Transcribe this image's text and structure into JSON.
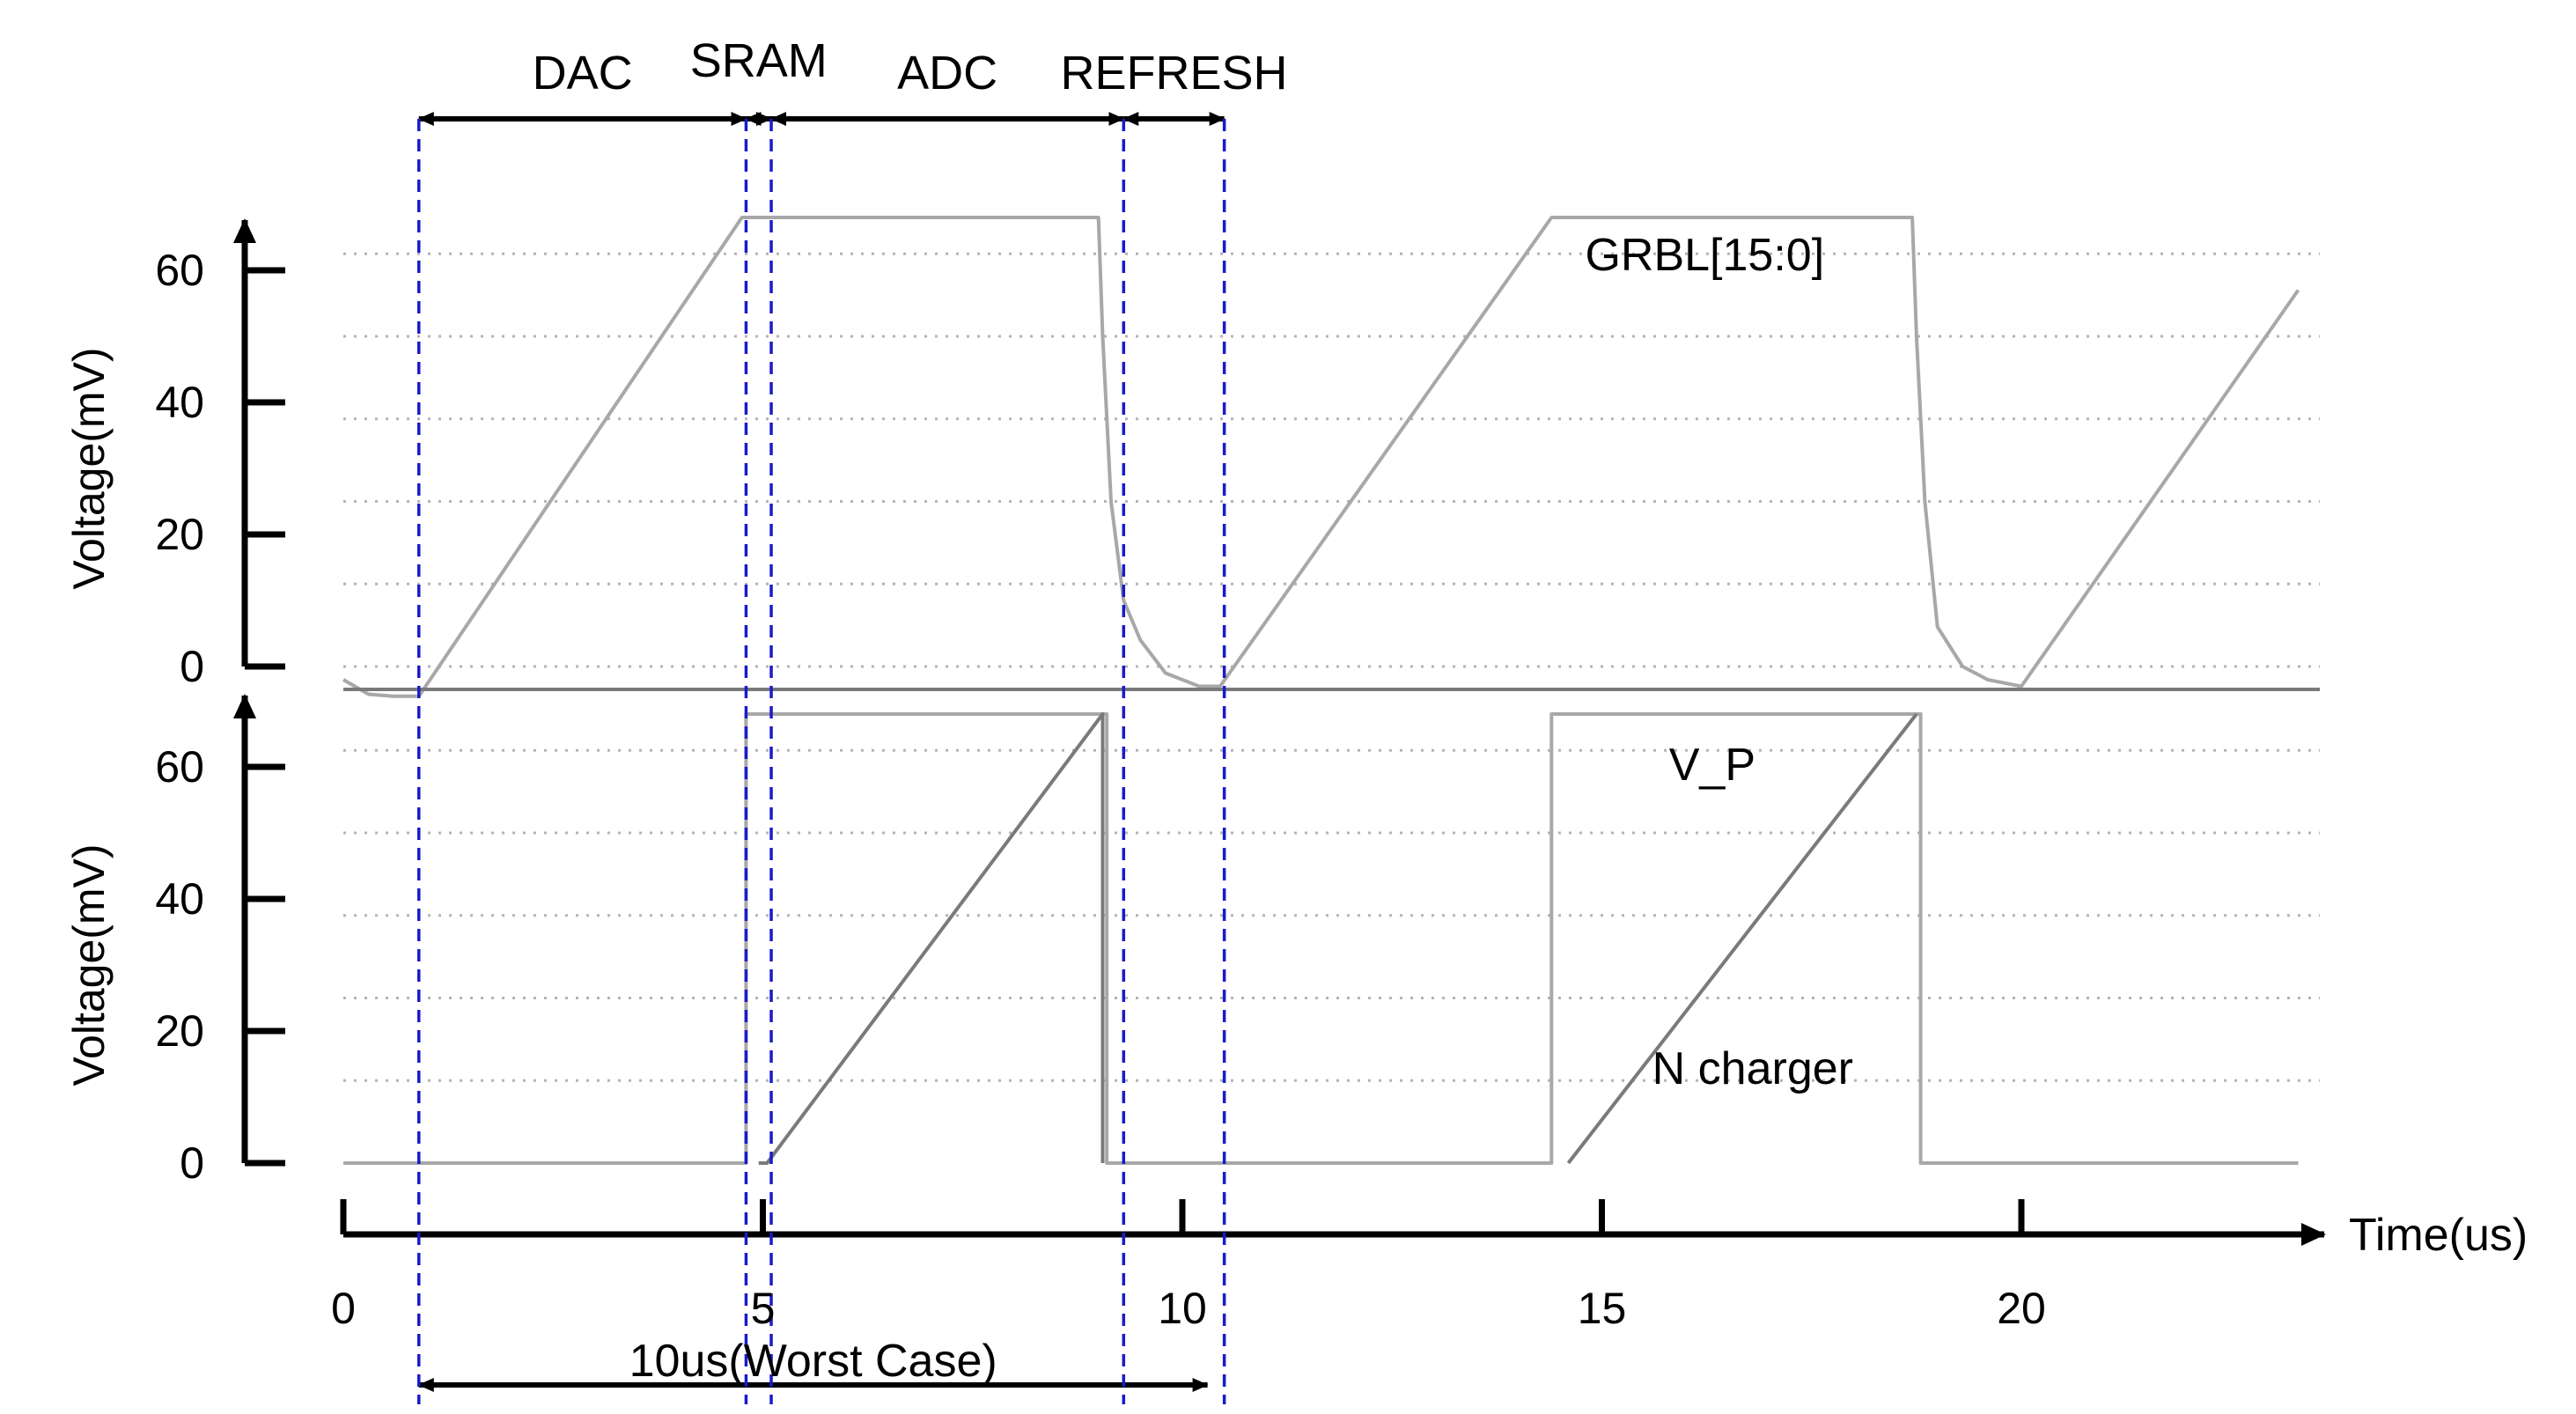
{
  "chart_data": {
    "type": "line",
    "x_axis": {
      "label": "Time(us)",
      "range": [
        0,
        23.3
      ],
      "ticks": [
        0,
        5,
        10,
        15,
        20
      ],
      "tick_labels": [
        "0",
        "5",
        "10",
        "15",
        "20"
      ]
    },
    "phases": [
      {
        "label": "DAC",
        "start": 0.9,
        "end": 4.8
      },
      {
        "label": "SRAM",
        "start": 4.8,
        "end": 5.1
      },
      {
        "label": "ADC",
        "start": 5.1,
        "end": 9.3
      },
      {
        "label": "REFRESH",
        "start": 9.3,
        "end": 10.5
      }
    ],
    "phase_markers": [
      0.9,
      4.8,
      5.1,
      9.3,
      10.5
    ],
    "worst_case": {
      "label": "10us(Worst Case)",
      "start": 0.9,
      "end": 10.3
    },
    "colors": {
      "marker": "#1a1acc",
      "trace": "#a8a8a8",
      "trace_dark": "#7a7a7a",
      "axis": "#000000",
      "grid": "#b4b4b4"
    },
    "panels": [
      {
        "ylabel": "Voltage(mV)",
        "ylim": [
          0,
          65
        ],
        "yticks": [
          0,
          20,
          40,
          60
        ],
        "ytick_labels": [
          "0",
          "20",
          "40",
          "60"
        ],
        "grid_y": [
          0,
          12.5,
          25,
          37.5,
          50,
          62.5
        ],
        "grid": true,
        "series": [
          {
            "name": "GRBL[15:0]",
            "color": "#a8a8a8",
            "x": [
              0,
              0.3,
              0.6,
              0.9,
              4.75,
              9.0,
              9.05,
              9.15,
              9.3,
              9.5,
              9.8,
              10.2,
              10.45,
              14.4,
              18.7,
              18.75,
              18.85,
              19.0,
              19.3,
              19.6,
              20.0,
              23.3
            ],
            "y": [
              -2,
              -4.2,
              -4.5,
              -4.5,
              68,
              68,
              50,
              25,
              10,
              4,
              -1,
              -3,
              -3,
              68,
              68,
              50,
              25,
              6,
              0,
              -2,
              -3,
              57
            ]
          }
        ],
        "annotations": [
          {
            "text": "GRBL[15:0]",
            "x": 14.8,
            "y": 60
          }
        ]
      },
      {
        "ylabel": "Voltage(mV)",
        "ylim": [
          0,
          65
        ],
        "yticks": [
          0,
          20,
          40,
          60
        ],
        "ytick_labels": [
          "0",
          "20",
          "40",
          "60"
        ],
        "grid_y": [
          12.5,
          25,
          37.5,
          50,
          62.5
        ],
        "grid": true,
        "series": [
          {
            "name": "V_P",
            "color": "#a8a8a8",
            "x": [
              0,
              4.8,
              4.8,
              9.1,
              9.1,
              14.4,
              14.4,
              18.8,
              18.8,
              23.3
            ],
            "y": [
              0,
              0,
              68,
              68,
              0,
              0,
              68,
              68,
              0,
              0
            ]
          },
          {
            "name": "N charger",
            "color": "#7a7a7a",
            "x": [
              4.95,
              5.05,
              9.05,
              9.05,
              14.5,
              14.6,
              18.75
            ],
            "y": [
              0,
              0,
              68,
              0,
              null,
              0,
              68
            ]
          }
        ],
        "annotations": [
          {
            "text": "V_P",
            "x": 15.8,
            "y": 58
          },
          {
            "text": "N charger",
            "x": 15.6,
            "y": 12
          }
        ]
      }
    ]
  }
}
